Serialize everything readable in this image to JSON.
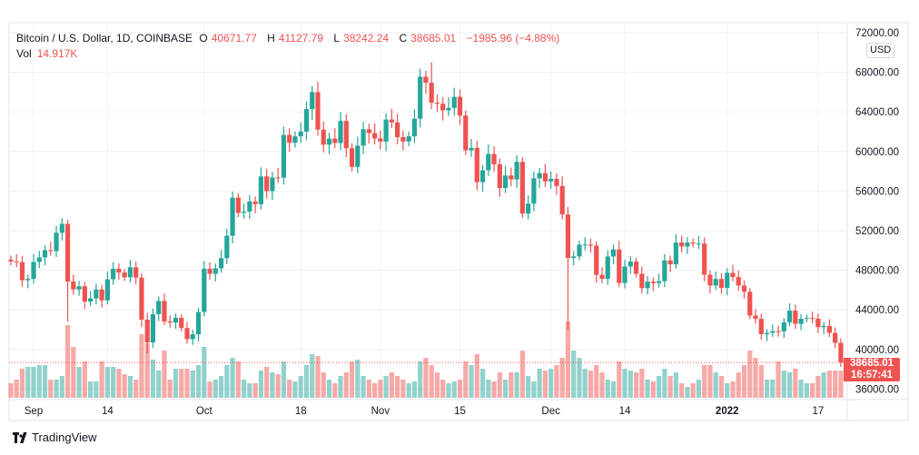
{
  "header": {
    "symbol": "Bitcoin / U.S. Dollar, 1D, COINBASE",
    "open_label": "O",
    "open": "40671.77",
    "high_label": "H",
    "high": "41127.79",
    "low_label": "L",
    "low": "38242.24",
    "close_label": "C",
    "close": "38685.01",
    "change": "−1985.96 (−4.88%)",
    "vol_label": "Vol",
    "vol": "14.917K"
  },
  "currency": "USD",
  "price_tag": {
    "price": "38685.01",
    "countdown": "16:57:41"
  },
  "brand": "TradingView",
  "colors": {
    "up": "#26a69a",
    "down": "#ef5350",
    "grid": "#f0f3fa",
    "axis_text": "#131722"
  },
  "chart_data": {
    "type": "candlestick",
    "title": "Bitcoin / U.S. Dollar, 1D, COINBASE",
    "ylim": [
      36000,
      72000
    ],
    "y_ticks": [
      "72000.00",
      "68000.00",
      "64000.00",
      "60000.00",
      "56000.00",
      "52000.00",
      "48000.00",
      "44000.00",
      "40000.00",
      "36000.00"
    ],
    "x_ticks": [
      {
        "label": "Sep",
        "index": 4
      },
      {
        "label": "14",
        "index": 17
      },
      {
        "label": "Oct",
        "index": 34
      },
      {
        "label": "18",
        "index": 51
      },
      {
        "label": "Nov",
        "index": 65
      },
      {
        "label": "15",
        "index": 79
      },
      {
        "label": "Dec",
        "index": 95
      },
      {
        "label": "14",
        "index": 108
      },
      {
        "label": "2022",
        "index": 126
      },
      {
        "label": "17",
        "index": 142
      }
    ],
    "first_open": 49070,
    "closes": [
      48900,
      48830,
      46990,
      47130,
      48840,
      49300,
      50030,
      49940,
      51790,
      52690,
      46860,
      46070,
      46380,
      44840,
      45160,
      46060,
      44960,
      47090,
      48150,
      47770,
      47290,
      48300,
      47260,
      43010,
      40710,
      43570,
      44900,
      42840,
      42720,
      43200,
      42170,
      41040,
      41530,
      43790,
      48160,
      47640,
      48200,
      49220,
      51490,
      55340,
      53800,
      53930,
      54950,
      54680,
      57480,
      56000,
      57370,
      57350,
      61670,
      60880,
      61530,
      62010,
      64280,
      66000,
      62210,
      60690,
      61300,
      60860,
      63080,
      60330,
      58450,
      60590,
      62250,
      61860,
      61320,
      61000,
      63230,
      62940,
      61450,
      61010,
      61530,
      63310,
      67550,
      66940,
      64930,
      64820,
      64160,
      64400,
      65520,
      63630,
      60120,
      60360,
      56900,
      58100,
      59750,
      58700,
      56300,
      57570,
      57180,
      58960,
      53730,
      54730,
      57290,
      57820,
      56980,
      57230,
      56510,
      53640,
      49250,
      49400,
      50580,
      50600,
      50490,
      47540,
      47140,
      49390,
      50100,
      46720,
      48380,
      48880,
      47650,
      46200,
      46850,
      46700,
      46900,
      49000,
      48600,
      50800,
      50400,
      50800,
      50700,
      50700,
      47550,
      46460,
      47120,
      46220,
      47740,
      47310,
      46460,
      45830,
      43430,
      43090,
      41550,
      41680,
      41850,
      41830,
      42740,
      43920,
      42590,
      43100,
      43180,
      43110,
      42250,
      42380,
      41680,
      40671.77,
      38685.01
    ],
    "wick_overrides": [
      {
        "index": 10,
        "low": 42830
      },
      {
        "index": 24,
        "low": 39600
      },
      {
        "index": 74,
        "high": 69000
      },
      {
        "index": 98,
        "low": 42000
      },
      {
        "index": 146,
        "open": 40671.77,
        "high": 41127.79,
        "low": 38242.24
      }
    ],
    "volume_unit": "K",
    "volumes": [
      8,
      10,
      16,
      17,
      17,
      18,
      18,
      10,
      10,
      12,
      40,
      28,
      17,
      20,
      9,
      9,
      20,
      17,
      17,
      16,
      13,
      12,
      10,
      35,
      30,
      21,
      15,
      26,
      10,
      16,
      16,
      16,
      15,
      18,
      28,
      9,
      10,
      12,
      18,
      22,
      20,
      10,
      8,
      8,
      15,
      17,
      14,
      13,
      20,
      10,
      9,
      12,
      18,
      24,
      23,
      14,
      10,
      8,
      12,
      14,
      20,
      21,
      12,
      10,
      8,
      10,
      12,
      14,
      12,
      10,
      8,
      9,
      20,
      22,
      18,
      14,
      10,
      8,
      9,
      10,
      20,
      18,
      24,
      16,
      10,
      9,
      14,
      10,
      14,
      14,
      26,
      12,
      9,
      16,
      15,
      16,
      18,
      22,
      42,
      26,
      22,
      16,
      15,
      18,
      14,
      10,
      9,
      20,
      16,
      15,
      14,
      16,
      10,
      9,
      12,
      16,
      12,
      14,
      8,
      6,
      8,
      10,
      18,
      18,
      14,
      12,
      8,
      9,
      14,
      18,
      26,
      22,
      18,
      10,
      10,
      20,
      15,
      14,
      16,
      10,
      8,
      8,
      12,
      14,
      15,
      15,
      14.917
    ]
  }
}
